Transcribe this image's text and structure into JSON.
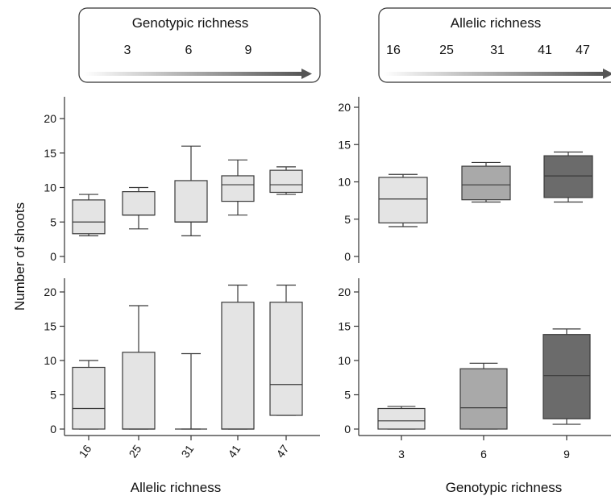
{
  "legends": [
    {
      "title": "Genotypic richness",
      "values": [
        "3",
        "6",
        "9"
      ]
    },
    {
      "title": "Allelic richness",
      "values": [
        "16",
        "25",
        "31",
        "41",
        "47"
      ]
    }
  ],
  "colors": {
    "light": "#e4e4e4",
    "mid": "#a9a9a9",
    "dark": "#6b6b6b",
    "stroke": "#3a3a3a"
  },
  "chart_data": [
    {
      "type": "box",
      "panel": "top-left",
      "ylabel": "Number of shoots",
      "categories": [
        "16",
        "25",
        "31",
        "41",
        "47"
      ],
      "ylim": [
        0,
        20
      ],
      "yticks": [
        0,
        5,
        10,
        15,
        20
      ],
      "boxes": [
        {
          "min": 3,
          "q1": 3.3,
          "median": 5,
          "q3": 8.2,
          "max": 9
        },
        {
          "min": 4,
          "q1": 6,
          "median": 6,
          "q3": 9.4,
          "max": 10
        },
        {
          "min": 3,
          "q1": 5,
          "median": 5,
          "q3": 11,
          "max": 16
        },
        {
          "min": 6,
          "q1": 8,
          "median": 10.4,
          "q3": 11.7,
          "max": 14
        },
        {
          "min": 9,
          "q1": 9.3,
          "median": 10.4,
          "q3": 12.5,
          "max": 13
        }
      ]
    },
    {
      "type": "box",
      "panel": "top-right",
      "categories": [
        "3",
        "6",
        "9"
      ],
      "ylim": [
        0,
        20
      ],
      "yticks": [
        0,
        5,
        10,
        15,
        20
      ],
      "boxes": [
        {
          "min": 4,
          "q1": 4.5,
          "median": 7.7,
          "q3": 10.6,
          "max": 11
        },
        {
          "min": 7.3,
          "q1": 7.6,
          "median": 9.6,
          "q3": 12.1,
          "max": 12.6
        },
        {
          "min": 7.3,
          "q1": 7.9,
          "median": 10.8,
          "q3": 13.5,
          "max": 14
        }
      ]
    },
    {
      "type": "box",
      "panel": "bottom-left",
      "xlabel": "Allelic richness",
      "categories": [
        "16",
        "25",
        "31",
        "41",
        "47"
      ],
      "ylim": [
        0,
        20
      ],
      "yticks": [
        0,
        5,
        10,
        15,
        20
      ],
      "boxes": [
        {
          "min": 0,
          "q1": 0,
          "median": 3,
          "q3": 9,
          "max": 10
        },
        {
          "min": 0,
          "q1": 0,
          "median": 0,
          "q3": 11.2,
          "max": 18
        },
        {
          "min": 0,
          "q1": 0,
          "median": 0,
          "q3": 0,
          "max": 11
        },
        {
          "min": 0,
          "q1": 0,
          "median": 0,
          "q3": 18.5,
          "max": 21
        },
        {
          "min": 2,
          "q1": 2,
          "median": 6.5,
          "q3": 18.5,
          "max": 21
        }
      ]
    },
    {
      "type": "box",
      "panel": "bottom-right",
      "xlabel": "Genotypic richness",
      "categories": [
        "3",
        "6",
        "9"
      ],
      "ylim": [
        0,
        20
      ],
      "yticks": [
        0,
        5,
        10,
        15,
        20
      ],
      "boxes": [
        {
          "min": 0,
          "q1": 0,
          "median": 1.2,
          "q3": 3,
          "max": 3.3
        },
        {
          "min": 0,
          "q1": 0,
          "median": 3.1,
          "q3": 8.8,
          "max": 9.6
        },
        {
          "min": 0.7,
          "q1": 1.5,
          "median": 7.8,
          "q3": 13.8,
          "max": 14.6
        }
      ]
    }
  ]
}
